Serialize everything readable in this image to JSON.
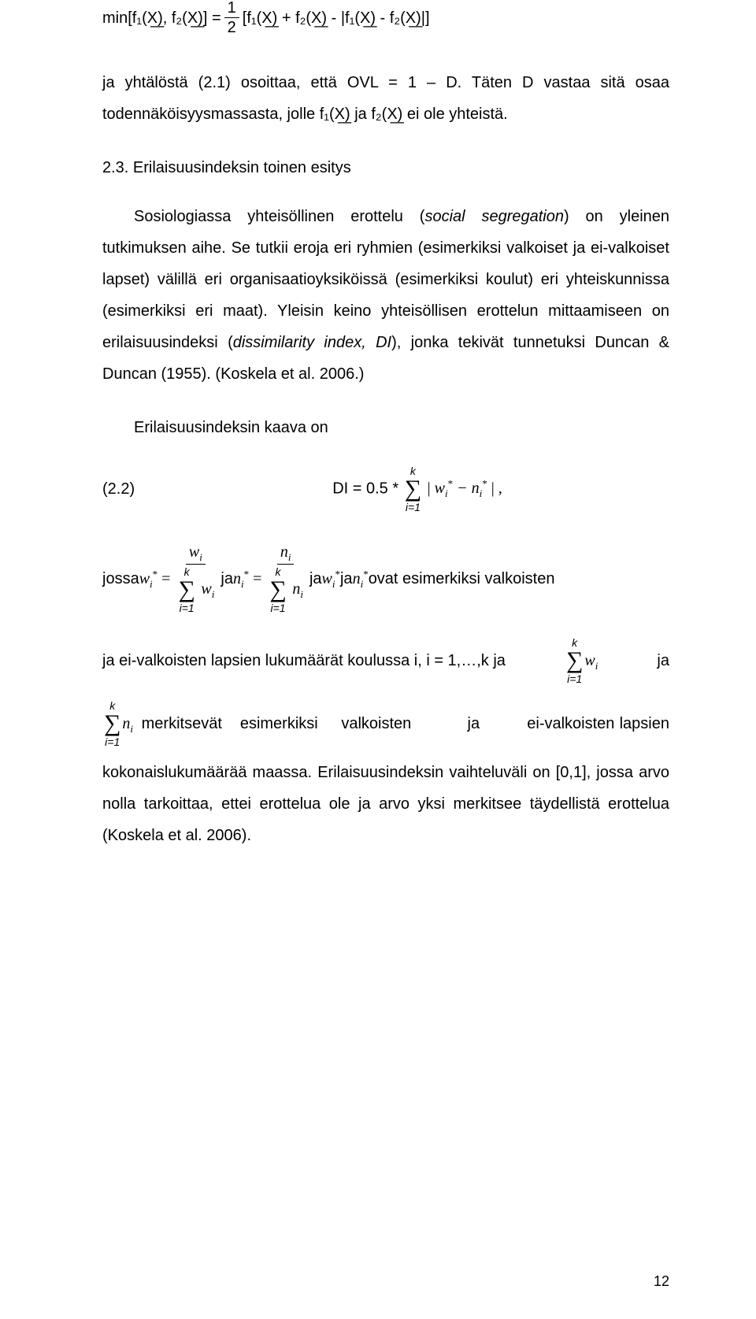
{
  "eq_top": "min[f₁(X͟), f₂(X͟)] = ½ [f₁(X͟) + f₂(X͟) - |f₁(X͟) - f₂(X͟)|]",
  "frac_top": {
    "num": "1",
    "den": "2"
  },
  "eq_top_left": "min[f₁(X͟), f₂(X͟)] = ",
  "eq_top_right": " [f₁(X͟) + f₂(X͟) - |f₁(X͟) - f₂(X͟)|]",
  "p1": "ja yhtälöstä (2.1) osoittaa, että OVL = 1 – D. Täten D vastaa sitä osaa todennäköisyysmassasta, jolle f₁(X͟) ja f₂(X͟) ei ole yhteistä.",
  "section_num": "2.3. Erilaisuusindeksin toinen esitys",
  "p2a": "Sosiologiassa yhteisöllinen erottelu (",
  "p2a_em": "social segregation",
  "p2b": ") on yleinen tutkimuksen aihe. Se tutkii eroja eri ryhmien (esimerkiksi valkoiset ja ei-valkoiset lapset) välillä eri organisaatioyksiköissä (esimerkiksi koulut) eri yhteiskunnissa (esimerkiksi eri maat). Yleisin keino yhteisöllisen erottelun mittaamiseen on erilaisuusindeksi (",
  "p2b_em": "dissimilarity index, DI",
  "p2c": "), jonka tekivät tunnetuksi Duncan & Duncan (1955). (Koskela et al. 2006.)",
  "p3": "Erilaisuusindeksin kaava on",
  "eq22_label": "(2.2)",
  "eq22_body": "DI = 0.5 * ",
  "eq22_sum_top": "k",
  "eq22_sum_bot": "i=1",
  "eq22_inner": "| wᵢ* − nᵢ* |",
  "jossa": "jossa ",
  "ja": " ja ",
  "ja_suffix": " ovat esimerkiksi valkoisten",
  "line3": "ja ei-valkoisten lapsien lukumäärät koulussa i, i = 1,…,k ja ",
  "line3_end": " ja",
  "line4_mid": "merkitsevät",
  "line4_a": "esimerkiksi",
  "line4_b": "valkoisten",
  "line4_c": "ja",
  "line4_d": "ei-valkoisten",
  "line4_e": "lapsien",
  "p5": "kokonaislukumäärää maassa. Erilaisuusindeksin vaihteluväli on [0,1], jossa arvo nolla tarkoittaa, ettei erottelua ole ja arvo yksi merkitsee täydellistä erottelua (Koskela et al. 2006).",
  "page_number": "12"
}
